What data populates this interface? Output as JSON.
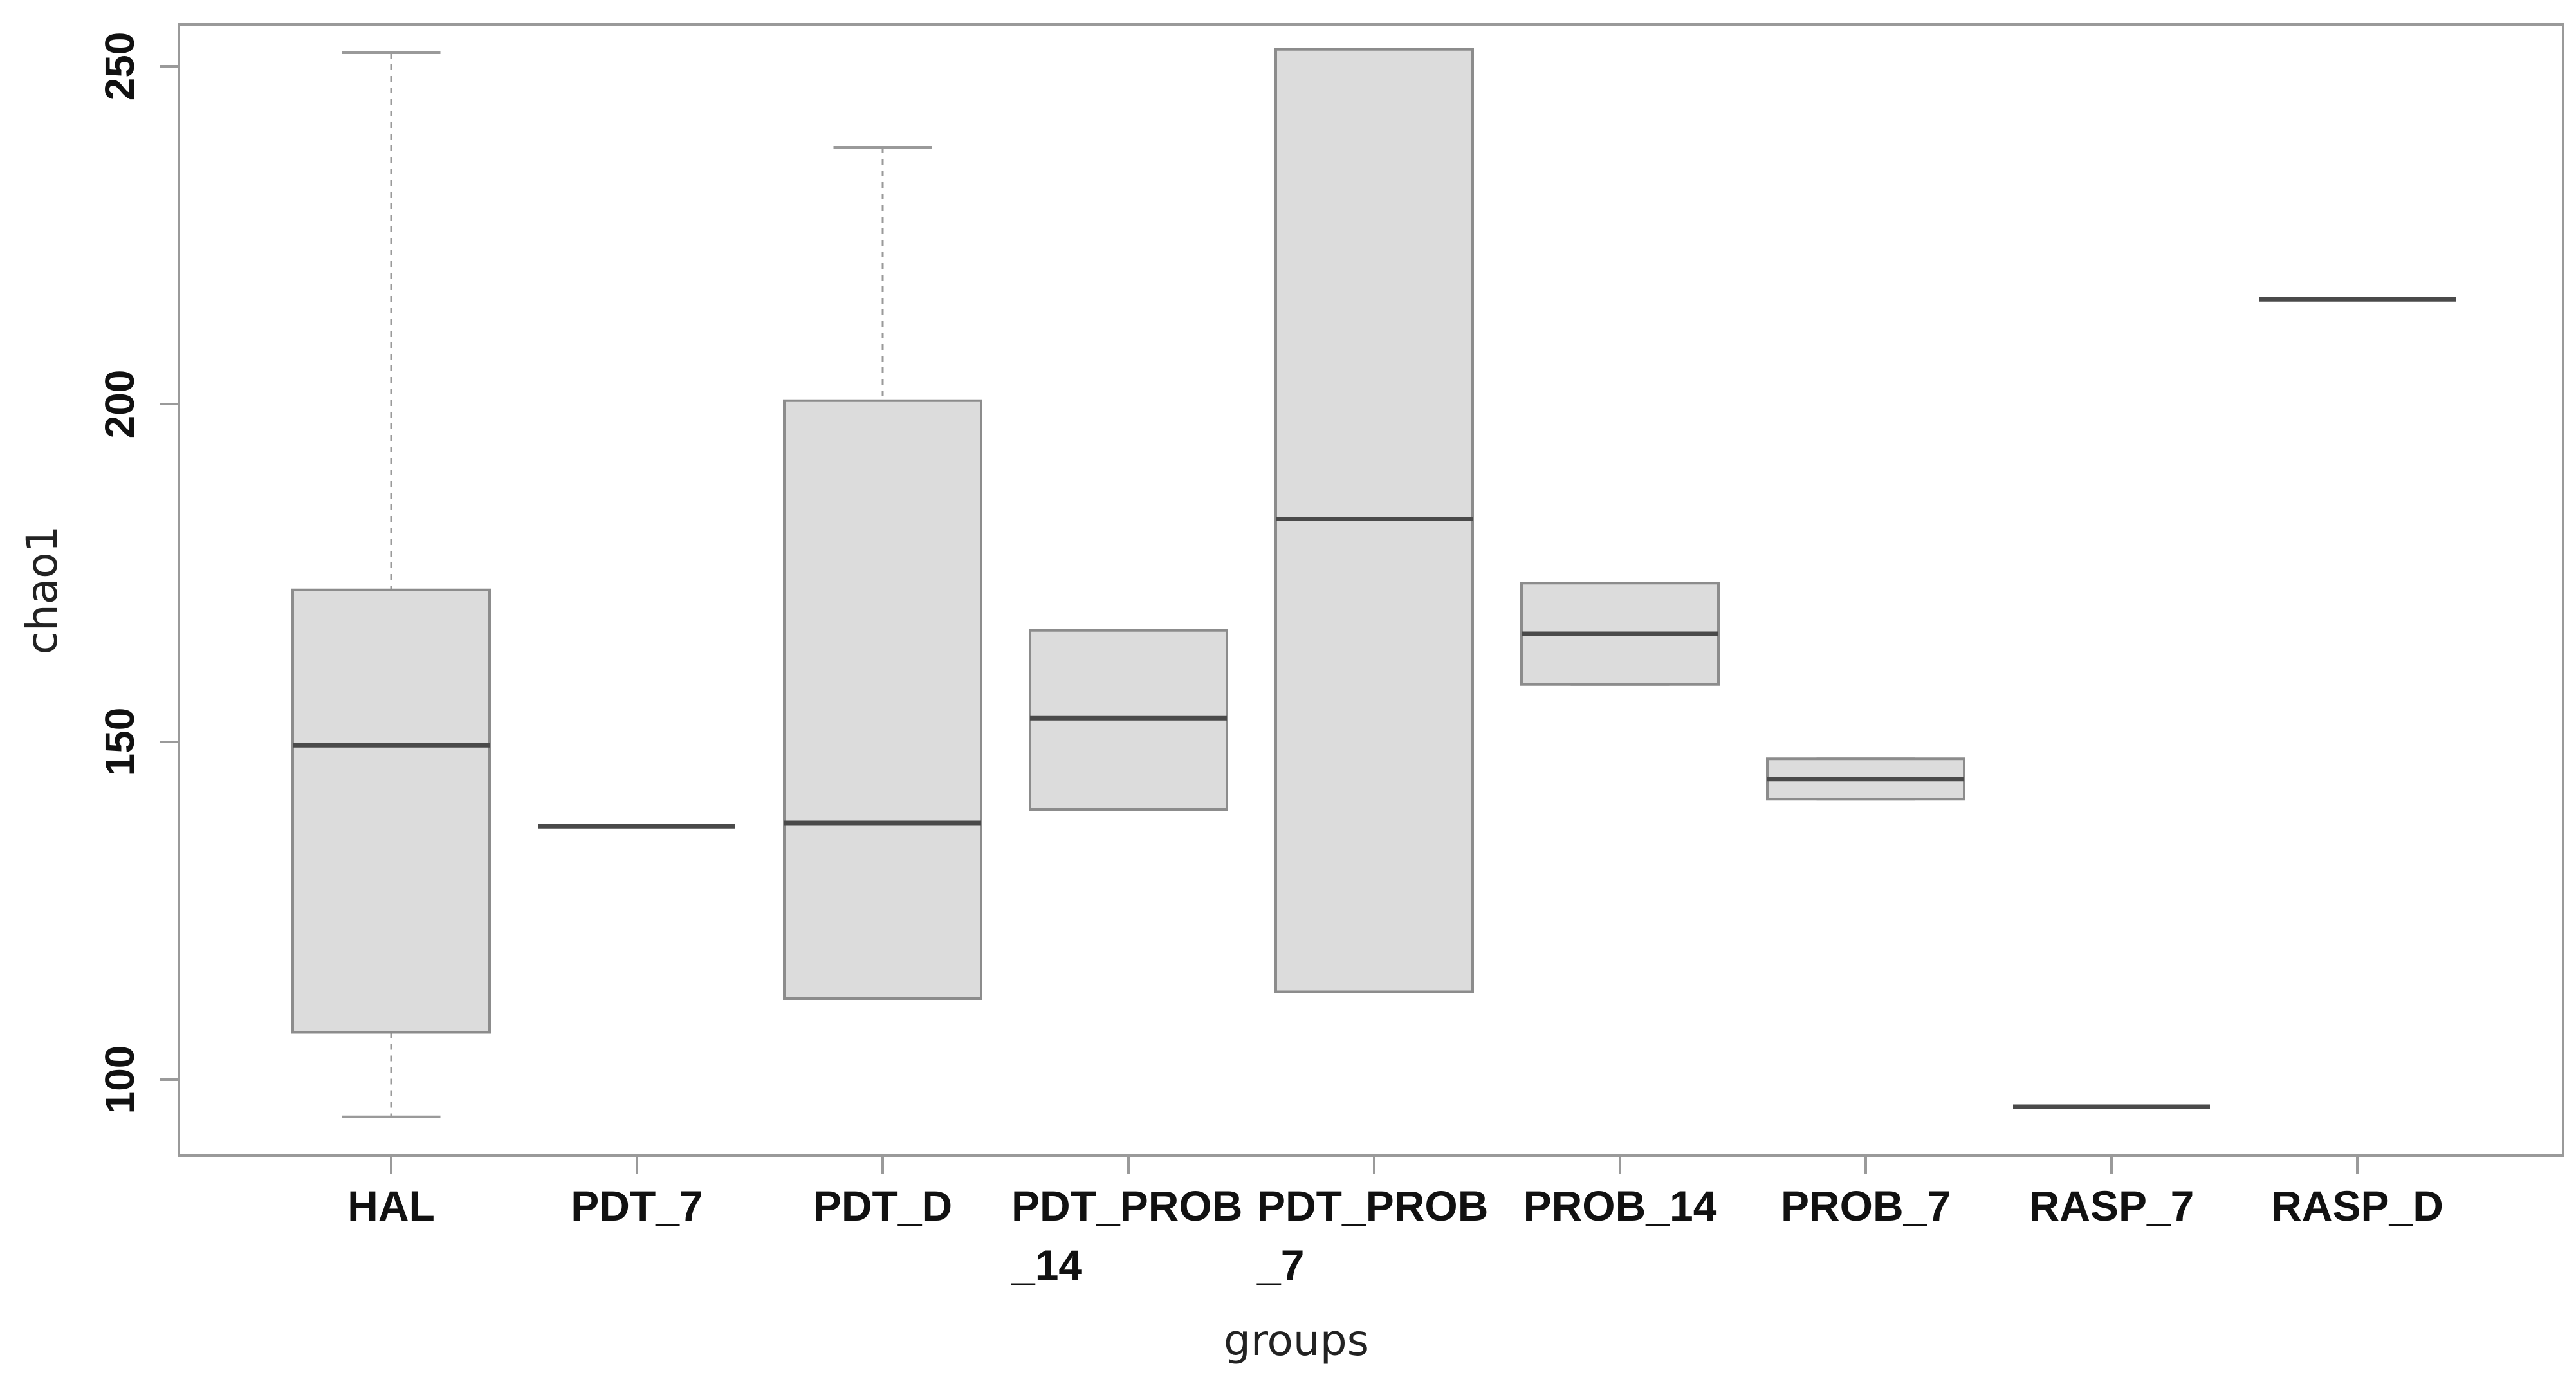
{
  "chart_data": {
    "type": "boxplot",
    "xlabel": "groups",
    "ylabel": "chao1",
    "ylim": [
      89,
      260
    ],
    "yticks": [
      100,
      150,
      200,
      250
    ],
    "grid": false,
    "legend": "none",
    "colors": {
      "box_fill": "#dcdcdc",
      "box_border": "#8c8c8c",
      "median": "#4a4a4a",
      "whisker": "#9a9a9a",
      "frame": "#9a9a9a"
    },
    "groups": [
      {
        "label": [
          "HAL"
        ],
        "min": 94.5,
        "q1": 107,
        "median": 149.5,
        "q3": 172.5,
        "max": 252
      },
      {
        "label": [
          "PDT_7"
        ],
        "min": 137.5,
        "q1": 137.5,
        "median": 137.5,
        "q3": 137.5,
        "max": 137.5
      },
      {
        "label": [
          "PDT_D"
        ],
        "min": 112,
        "q1": 112,
        "median": 138,
        "q3": 200.5,
        "max": 238
      },
      {
        "label": [
          "PDT_PROB",
          "_14"
        ],
        "min": 140,
        "q1": 140,
        "median": 153.5,
        "q3": 166.5,
        "max": 166.5
      },
      {
        "label": [
          "PDT_PROB",
          "_7"
        ],
        "min": 113,
        "q1": 113,
        "median": 183,
        "q3": 252.5,
        "max": 252.5
      },
      {
        "label": [
          "PROB_14"
        ],
        "min": 158.5,
        "q1": 158.5,
        "median": 166,
        "q3": 173.5,
        "max": 173.5
      },
      {
        "label": [
          "PROB_7"
        ],
        "min": 141.5,
        "q1": 141.5,
        "median": 144.5,
        "q3": 147.5,
        "max": 147.5
      },
      {
        "label": [
          "RASP_7"
        ],
        "min": 96,
        "q1": 96,
        "median": 96,
        "q3": 96,
        "max": 96
      },
      {
        "label": [
          "RASP_D"
        ],
        "min": 215.5,
        "q1": 215.5,
        "median": 215.5,
        "q3": 215.5,
        "max": 215.5
      }
    ]
  }
}
